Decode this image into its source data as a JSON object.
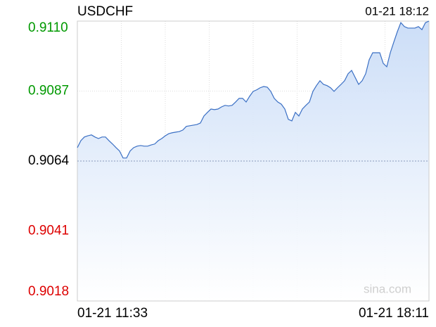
{
  "chart_data": {
    "type": "line",
    "title": "USDCHF",
    "updated": "01-21 18:12",
    "watermark": "sina.com",
    "categories": [
      "01-21 11:33",
      null,
      null,
      null,
      null,
      null,
      null,
      null,
      null,
      null,
      null,
      null,
      null,
      null,
      null,
      null,
      null,
      null,
      null,
      null,
      null,
      null,
      null,
      null,
      null,
      null,
      null,
      null,
      null,
      null,
      null,
      null,
      null,
      null,
      null,
      null,
      null,
      null,
      null,
      null,
      null,
      null,
      null,
      null,
      null,
      null,
      null,
      null,
      null,
      null,
      null,
      null,
      null,
      null,
      null,
      null,
      null,
      null,
      null,
      null,
      null,
      null,
      null,
      null,
      null,
      null,
      null,
      null,
      null,
      null,
      null,
      null,
      null,
      null,
      null,
      null,
      null,
      null,
      null,
      null,
      null,
      null,
      null,
      null,
      null,
      null,
      null,
      null,
      null,
      null,
      null,
      null,
      null,
      null,
      null,
      null,
      null,
      null,
      null,
      null,
      "01-21 18:11"
    ],
    "values": [
      0.90684,
      0.90707,
      0.90719,
      0.90723,
      0.90726,
      0.90719,
      0.90714,
      0.90719,
      0.90719,
      0.90707,
      0.90696,
      0.90684,
      0.90673,
      0.9065,
      0.9065,
      0.90673,
      0.90684,
      0.90689,
      0.90691,
      0.90689,
      0.90689,
      0.90693,
      0.90696,
      0.90707,
      0.90714,
      0.90723,
      0.9073,
      0.90733,
      0.90735,
      0.90737,
      0.90742,
      0.90754,
      0.90756,
      0.90758,
      0.9076,
      0.90765,
      0.90788,
      0.908,
      0.90811,
      0.90809,
      0.90811,
      0.90818,
      0.90823,
      0.90821,
      0.90823,
      0.90834,
      0.90846,
      0.90846,
      0.90834,
      0.90853,
      0.90869,
      0.90874,
      0.90881,
      0.90885,
      0.90883,
      0.90869,
      0.90846,
      0.90834,
      0.90827,
      0.90811,
      0.90777,
      0.90772,
      0.908,
      0.90788,
      0.90811,
      0.90823,
      0.90834,
      0.90869,
      0.90888,
      0.90904,
      0.90892,
      0.90888,
      0.90881,
      0.90869,
      0.90881,
      0.90892,
      0.90904,
      0.90927,
      0.90938,
      0.90915,
      0.90892,
      0.90904,
      0.90927,
      0.90973,
      0.90996,
      0.90996,
      0.90996,
      0.90961,
      0.9095,
      0.90996,
      0.91031,
      0.91065,
      0.91095,
      0.91082,
      0.91077,
      0.91077,
      0.91077,
      0.91082,
      0.91072,
      0.91095,
      0.911
    ],
    "color": "#3a6fc4",
    "reference": 0.9064,
    "up_color": "#009900",
    "down_color": "#dd0000",
    "flat_color": "#000000",
    "ylim": [
      0.9018,
      0.911
    ],
    "yticks": [
      {
        "value": 0.911,
        "label": "0.9110"
      },
      0.9087,
      0.9064,
      0.9041,
      0.9018
    ],
    "grid": true
  }
}
